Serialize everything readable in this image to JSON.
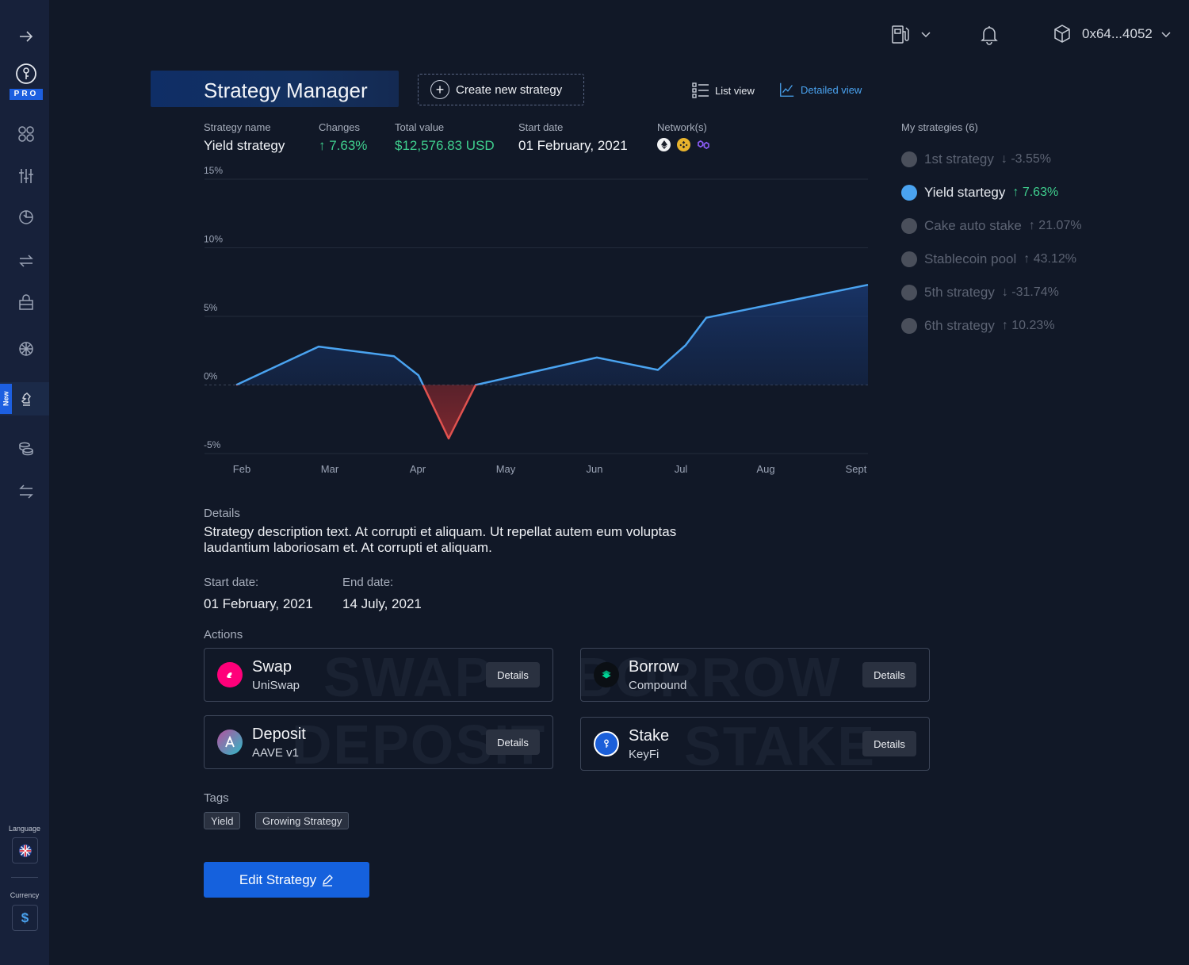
{
  "header": {
    "wallet_address": "0x64...4052"
  },
  "page": {
    "title": "Strategy Manager",
    "create_label": "Create new strategy",
    "list_view_label": "List view",
    "detailed_view_label": "Detailed view"
  },
  "sidebar": {
    "new_tag": "New",
    "language_label": "Language",
    "currency_label": "Currency",
    "currency_symbol": "$",
    "pro_label": "PRO"
  },
  "stats": {
    "strategy_name_label": "Strategy name",
    "strategy_name": "Yield strategy",
    "changes_label": "Changes",
    "changes": "↑ 7.63%",
    "total_value_label": "Total value",
    "total_value": "$12,576.83 USD",
    "start_date_label": "Start date",
    "start_date": "01 February, 2021",
    "networks_label": "Network(s)"
  },
  "chart_data": {
    "type": "line",
    "categories": [
      "Feb",
      "Mar",
      "Apr",
      "May",
      "Jun",
      "Jul",
      "Aug",
      "Sept"
    ],
    "y_tick_labels": [
      "15%",
      "10%",
      "5%",
      "0%",
      "-5%"
    ],
    "ylim": [
      -5,
      15
    ],
    "points": [
      {
        "x": "Feb",
        "y": 0.0
      },
      {
        "x": "Mar",
        "y": 2.8
      },
      {
        "x": "Mar-Apr",
        "y": 2.1
      },
      {
        "x": "Apr",
        "y": 0.7
      },
      {
        "x": "Apr-May",
        "y": -3.9
      },
      {
        "x": "Apr-May",
        "y": 0.0
      },
      {
        "x": "Jun",
        "y": 2.0
      },
      {
        "x": "Jun-Jul",
        "y": 1.1
      },
      {
        "x": "Jul",
        "y": 2.9
      },
      {
        "x": "Jul",
        "y": 4.9
      },
      {
        "x": "Sept",
        "y": 7.3
      }
    ],
    "colors": {
      "positive": "#4aa3f0",
      "negative": "#e0524f"
    }
  },
  "my_strategies": {
    "title": "My strategies (6)",
    "items": [
      {
        "name": "1st strategy",
        "change": "↓ -3.55%",
        "active": false
      },
      {
        "name": "Yield startegy",
        "change": "↑ 7.63%",
        "active": true
      },
      {
        "name": "Cake auto stake",
        "change": "↑ 21.07%",
        "active": false
      },
      {
        "name": "Stablecoin pool",
        "change": "↑ 43.12%",
        "active": false
      },
      {
        "name": "5th strategy",
        "change": "↓ -31.74%",
        "active": false
      },
      {
        "name": "6th strategy",
        "change": "↑ 10.23%",
        "active": false
      }
    ]
  },
  "details": {
    "label": "Details",
    "text": "Strategy description text. At corrupti et aliquam. Ut repellat autem eum voluptas laudantium laboriosam et. At corrupti et aliquam.",
    "start_label": "Start date:",
    "start_value": "01 February, 2021",
    "end_label": "End date:",
    "end_value": "14 July, 2021"
  },
  "actions": {
    "label": "Actions",
    "details_label": "Details",
    "cards": [
      {
        "title": "Swap",
        "subtitle": "UniSwap",
        "watermark": "SWAP"
      },
      {
        "title": "Borrow",
        "subtitle": "Compound",
        "watermark": "BORROW"
      },
      {
        "title": "Deposit",
        "subtitle": "AAVE v1",
        "watermark": "DEPOSIT"
      },
      {
        "title": "Stake",
        "subtitle": "KeyFi",
        "watermark": "STAKE"
      }
    ]
  },
  "tags": {
    "label": "Tags",
    "items": [
      "Yield",
      "Growing Strategy"
    ]
  },
  "edit_label": "Edit Strategy"
}
